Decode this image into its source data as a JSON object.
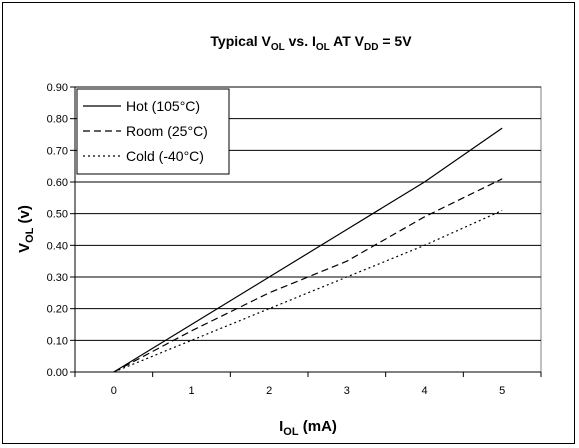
{
  "chart_data": {
    "type": "line",
    "title": {
      "prefix": "Typical V",
      "sub1": "OL",
      "mid1": " vs. I",
      "sub2": "OL",
      "mid2": " AT V",
      "sub3": "DD",
      "suffix": " = 5V"
    },
    "xlabel": {
      "main": "I",
      "sub": "OL",
      "rest": " (mA)"
    },
    "ylabel": {
      "main": "V",
      "sub": "OL",
      "rest": " (v)"
    },
    "x_ticks": [
      "0",
      "1",
      "2",
      "3",
      "4",
      "5"
    ],
    "y_ticks": [
      "0.00",
      "0.10",
      "0.20",
      "0.30",
      "0.40",
      "0.50",
      "0.60",
      "0.70",
      "0.80",
      "0.90"
    ],
    "xlim": [
      -0.5,
      5.5
    ],
    "ylim": [
      0,
      0.9
    ],
    "grid": "horizontal",
    "legend_position": "top-left",
    "series": [
      {
        "name": "Hot (105°C)",
        "style": "solid",
        "x": [
          0,
          1,
          2,
          3,
          4,
          5
        ],
        "values": [
          0.0,
          0.15,
          0.3,
          0.45,
          0.6,
          0.77
        ]
      },
      {
        "name": "Room (25°C)",
        "style": "dashed",
        "x": [
          0,
          1,
          2,
          3,
          4,
          5
        ],
        "values": [
          0.0,
          0.13,
          0.25,
          0.35,
          0.49,
          0.61
        ]
      },
      {
        "name": "Cold (-40°C)",
        "style": "dotted",
        "x": [
          0,
          1,
          2,
          3,
          4,
          5
        ],
        "values": [
          0.0,
          0.1,
          0.2,
          0.3,
          0.4,
          0.51
        ]
      }
    ]
  }
}
